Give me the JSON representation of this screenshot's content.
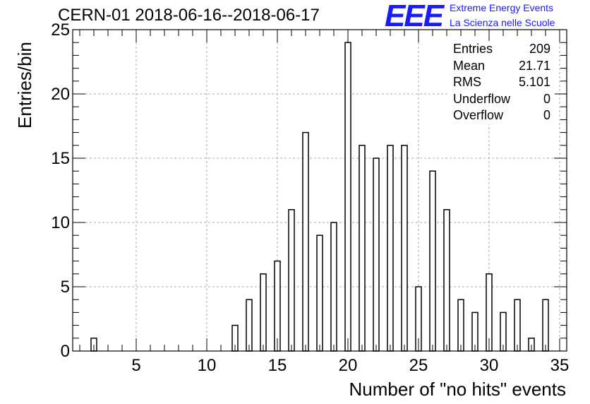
{
  "title": "CERN-01 2018-06-16--2018-06-17",
  "logo": {
    "mark": "EEE",
    "line1": "Extreme Energy Events",
    "line2": "La Scienza nelle Scuole",
    "color": "#1a1aff"
  },
  "stats": [
    {
      "label": "Entries",
      "value": "209"
    },
    {
      "label": "Mean",
      "value": "21.71"
    },
    {
      "label": "RMS",
      "value": "5.101"
    },
    {
      "label": "Underflow",
      "value": "0"
    },
    {
      "label": "Overflow",
      "value": "0"
    }
  ],
  "chart_data": {
    "type": "bar",
    "title": "CERN-01 2018-06-16--2018-06-17",
    "xlabel": "Number of \"no hits\" events",
    "ylabel": "Entries/bin",
    "xlim": [
      0.5,
      35.5
    ],
    "ylim": [
      0,
      25
    ],
    "xticks": [
      5,
      10,
      15,
      20,
      25,
      30,
      35
    ],
    "yticks": [
      0,
      5,
      10,
      15,
      20,
      25
    ],
    "grid": true,
    "bin_width": 0.4,
    "x": [
      2,
      12,
      13,
      14,
      15,
      16,
      17,
      18,
      19,
      20,
      21,
      22,
      23,
      24,
      25,
      26,
      27,
      28,
      29,
      30,
      31,
      32,
      33,
      34
    ],
    "values": [
      1,
      2,
      4,
      6,
      7,
      11,
      17,
      9,
      10,
      24,
      16,
      15,
      16,
      16,
      5,
      14,
      11,
      4,
      3,
      6,
      3,
      4,
      1,
      4
    ]
  }
}
